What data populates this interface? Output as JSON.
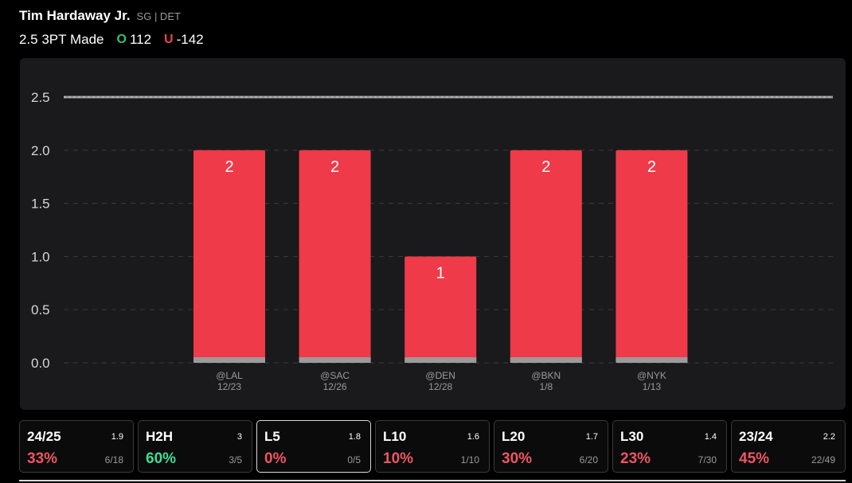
{
  "player": {
    "name": "Tim Hardaway Jr.",
    "meta": "SG | DET"
  },
  "prop": {
    "label": "2.5 3PT Made",
    "over_letter": "O",
    "over_odds": "112",
    "under_letter": "U",
    "under_odds": "-142"
  },
  "colors": {
    "bar": "#ef3a4a",
    "bar_base": "#9b9b9b",
    "line": "#9a9a9a",
    "grid": "#3a3a3e",
    "over": "#2ec27e",
    "under": "#ef4050"
  },
  "chart_data": {
    "type": "bar",
    "categories": [
      "@LAL",
      "@SAC",
      "@DEN",
      "@BKN",
      "@NYK"
    ],
    "dates": [
      "12/23",
      "12/26",
      "12/28",
      "1/8",
      "1/13"
    ],
    "values": [
      2,
      2,
      1,
      2,
      2
    ],
    "data_labels": [
      "2",
      "2",
      "1",
      "2",
      "2"
    ],
    "threshold": 2.5,
    "ylim": [
      0,
      2.5
    ],
    "yticks": [
      "0.0",
      "0.5",
      "1.0",
      "1.5",
      "2.0",
      "2.5"
    ],
    "grid": true,
    "title": "",
    "xlabel": "",
    "ylabel": ""
  },
  "stats": [
    {
      "label": "24/25",
      "avg": "1.9",
      "pct": "33%",
      "ratio": "6/18",
      "tone": "bad",
      "active": false
    },
    {
      "label": "H2H",
      "avg": "3",
      "pct": "60%",
      "ratio": "3/5",
      "tone": "good",
      "active": false
    },
    {
      "label": "L5",
      "avg": "1.8",
      "pct": "0%",
      "ratio": "0/5",
      "tone": "bad",
      "active": true
    },
    {
      "label": "L10",
      "avg": "1.6",
      "pct": "10%",
      "ratio": "1/10",
      "tone": "bad",
      "active": false
    },
    {
      "label": "L20",
      "avg": "1.7",
      "pct": "30%",
      "ratio": "6/20",
      "tone": "bad",
      "active": false
    },
    {
      "label": "L30",
      "avg": "1.4",
      "pct": "23%",
      "ratio": "7/30",
      "tone": "bad",
      "active": false
    },
    {
      "label": "23/24",
      "avg": "2.2",
      "pct": "45%",
      "ratio": "22/49",
      "tone": "bad",
      "active": false
    }
  ]
}
